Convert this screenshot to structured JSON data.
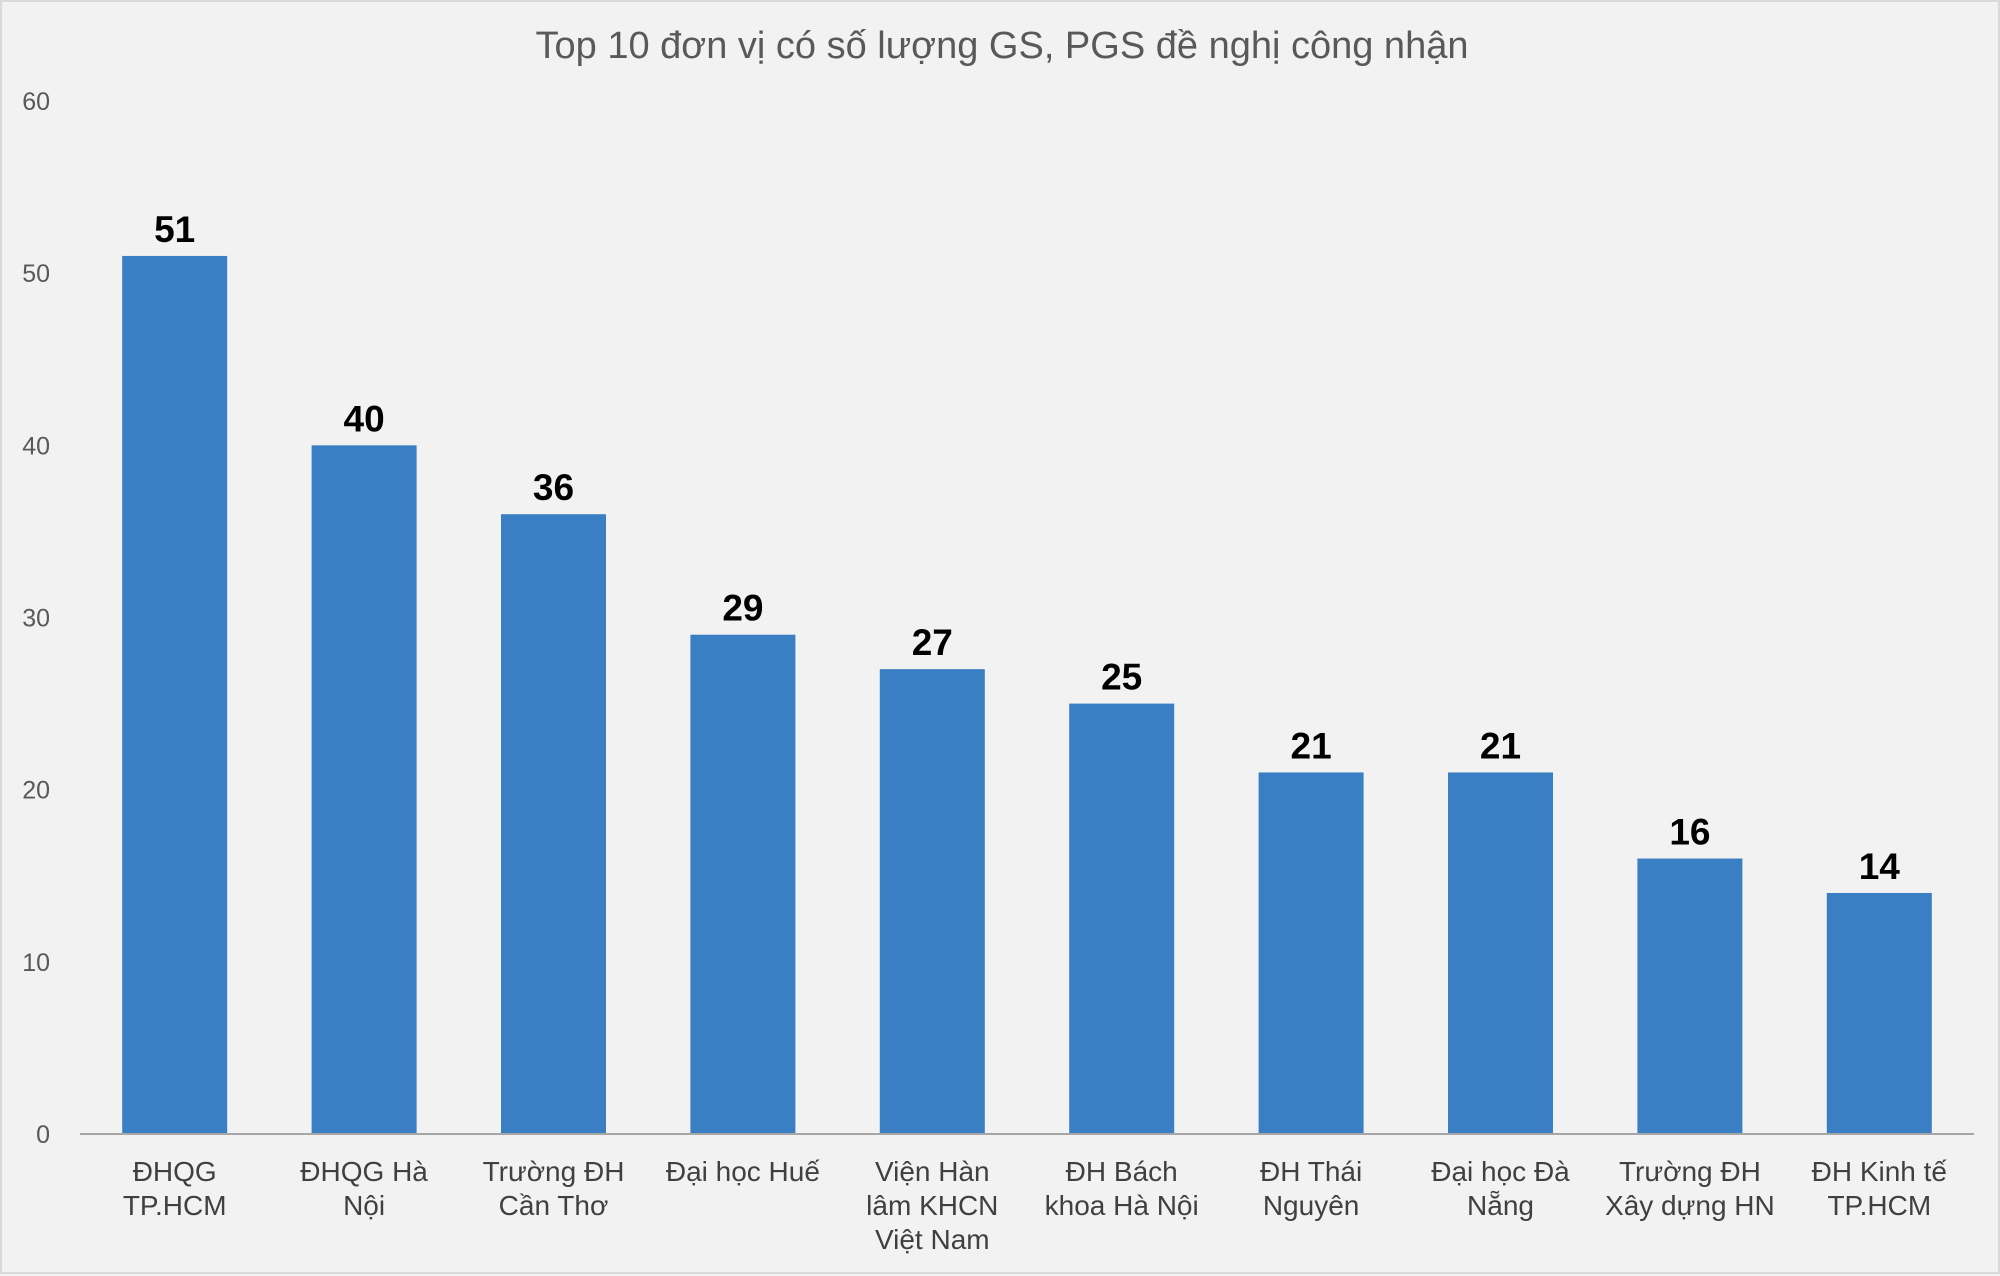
{
  "chart_data": {
    "type": "bar",
    "title": "Top 10 đơn vị có số lượng GS, PGS đề nghị công nhận",
    "xlabel": "",
    "ylabel": "",
    "ylim": [
      0,
      60
    ],
    "yticks": [
      0,
      10,
      20,
      30,
      40,
      50,
      60
    ],
    "grid": false,
    "legend": "none",
    "bar_color": "#3a7ec3",
    "categories": [
      [
        "ĐHQG",
        "TP.HCM"
      ],
      [
        "ĐHQG Hà",
        "Nội"
      ],
      [
        "Trường ĐH",
        "Cần Thơ"
      ],
      [
        "Đại học Huế"
      ],
      [
        "Viện Hàn",
        "lâm KHCN",
        "Việt Nam"
      ],
      [
        "ĐH Bách",
        "khoa Hà Nội"
      ],
      [
        "ĐH Thái",
        "Nguyên"
      ],
      [
        "Đại học Đà",
        "Nẵng"
      ],
      [
        "Trường ĐH",
        "Xây dựng HN"
      ],
      [
        "ĐH Kinh tế",
        "TP.HCM"
      ]
    ],
    "values": [
      51,
      40,
      36,
      29,
      27,
      25,
      21,
      21,
      16,
      14
    ]
  }
}
